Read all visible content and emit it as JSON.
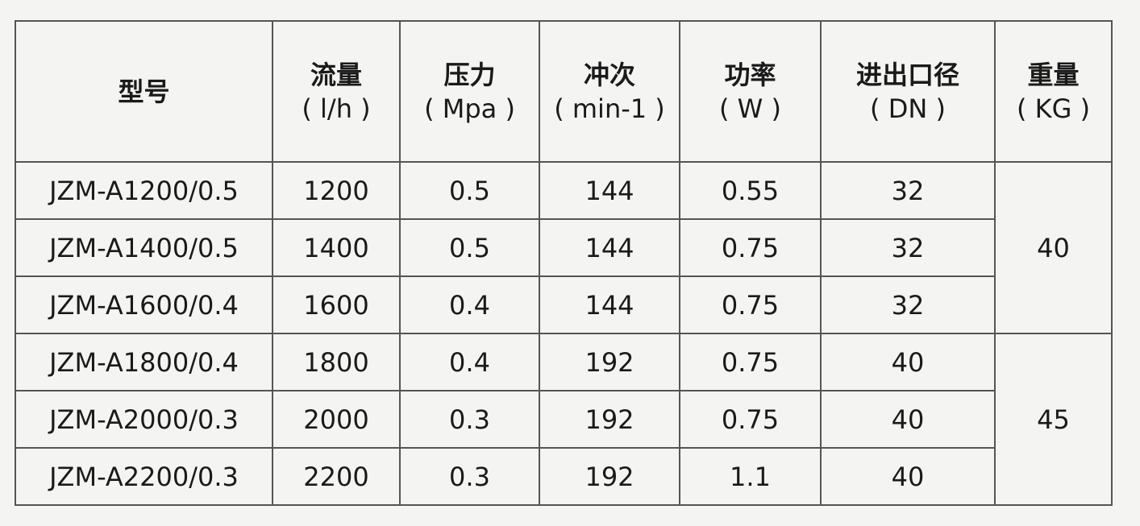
{
  "table": {
    "header": [
      {
        "name": "型号"
      },
      {
        "name": "流量",
        "unit": "( l/h )"
      },
      {
        "name": "压力",
        "unit": "( Mpa )"
      },
      {
        "name": "冲次",
        "unit": "( min-1 )"
      },
      {
        "name": "功率",
        "unit": "( W )"
      },
      {
        "name": "进出口径",
        "unit": "( DN )"
      },
      {
        "name": "重量",
        "unit": "( KG )"
      }
    ],
    "rows": [
      [
        "JZM-A1200/0.5",
        "1200",
        "0.5",
        "144",
        "0.55",
        "32"
      ],
      [
        "JZM-A1400/0.5",
        "1400",
        "0.5",
        "144",
        "0.75",
        "32"
      ],
      [
        "JZM-A1600/0.4",
        "1600",
        "0.4",
        "144",
        "0.75",
        "32"
      ],
      [
        "JZM-A1800/0.4",
        "1800",
        "0.4",
        "192",
        "0.75",
        "40"
      ],
      [
        "JZM-A2000/0.3",
        "2000",
        "0.3",
        "192",
        "0.75",
        "40"
      ],
      [
        "JZM-A2200/0.3",
        "2200",
        "0.3",
        "192",
        "1.1",
        "40"
      ]
    ],
    "weights": [
      "40",
      "45"
    ]
  }
}
